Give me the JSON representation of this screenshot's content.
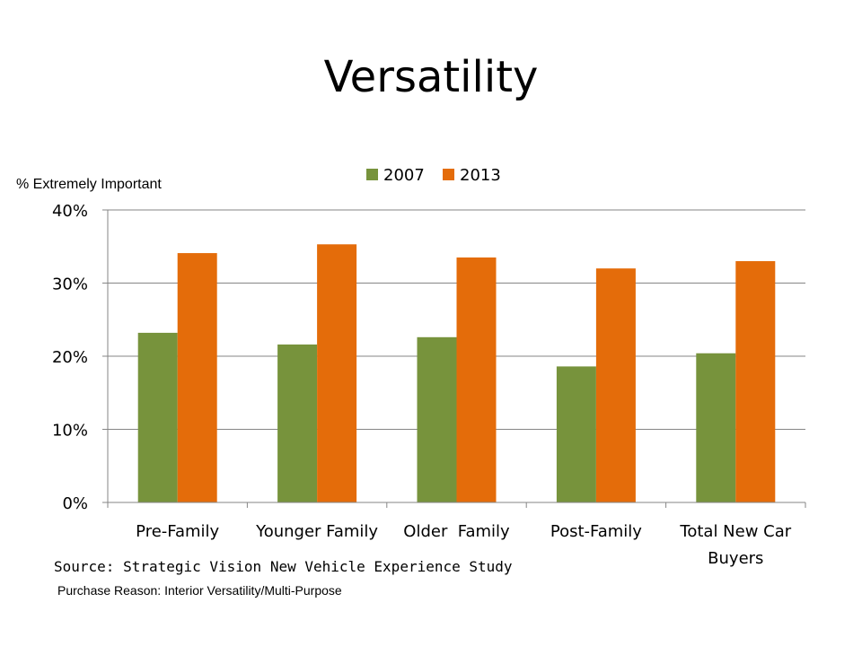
{
  "title": "Versatility",
  "source_text": "Source: Strategic Vision New Vehicle Experience Study",
  "note_text": "Purchase Reason: Interior Versatility/Multi-Purpose",
  "chart_data": {
    "type": "bar",
    "ylabel": "% Extremely Important",
    "xlabel": "",
    "categories": [
      "Pre-Family",
      "Younger Family",
      "Older  Family",
      "Post-Family",
      "Total New Car Buyers"
    ],
    "series": [
      {
        "name": "2007",
        "color": "#77933C",
        "values": [
          23.2,
          21.6,
          22.6,
          18.6,
          20.4
        ]
      },
      {
        "name": "2013",
        "color": "#E46C0A",
        "values": [
          34.1,
          35.3,
          33.5,
          32.0,
          33.0
        ]
      }
    ],
    "ylim": [
      0,
      40
    ],
    "yticks": [
      0,
      10,
      20,
      30,
      40
    ],
    "ytick_labels": [
      "0%",
      "10%",
      "20%",
      "30%",
      "40%"
    ],
    "grid": true,
    "legend_position": "top-center"
  }
}
